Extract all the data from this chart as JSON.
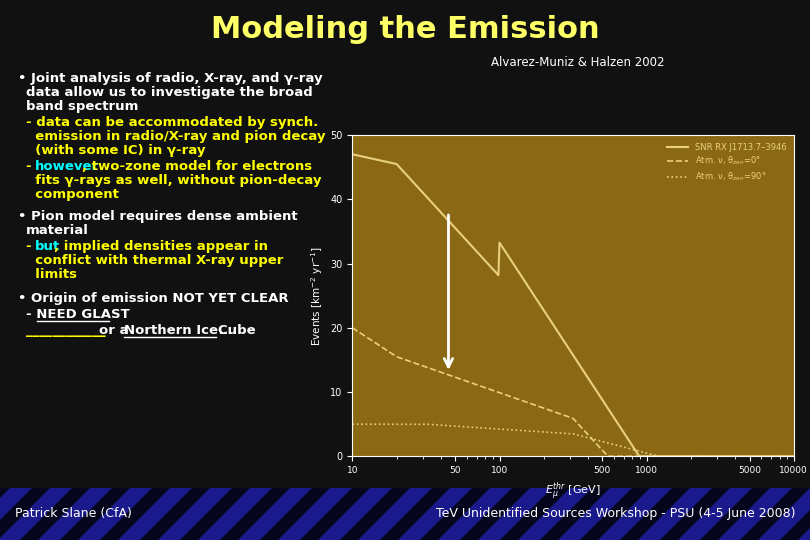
{
  "title": "Modeling the Emission",
  "title_color": "#FFFF66",
  "bg_color": "#111111",
  "text_color": "#FFFFFF",
  "yellow_color": "#FFFF00",
  "cyan_color": "#00FFFF",
  "footer_left": "Patrick Slane (CfA)",
  "footer_right": "TeV Unidentified Sources Workshop - PSU (4-5 June 2008)",
  "plot_caption": "Alvarez-Muniz & Halzen 2002",
  "plot_bg_color": "#8B6914",
  "curve_color": "#E8D080",
  "footer_bg": "#1a1a8c"
}
